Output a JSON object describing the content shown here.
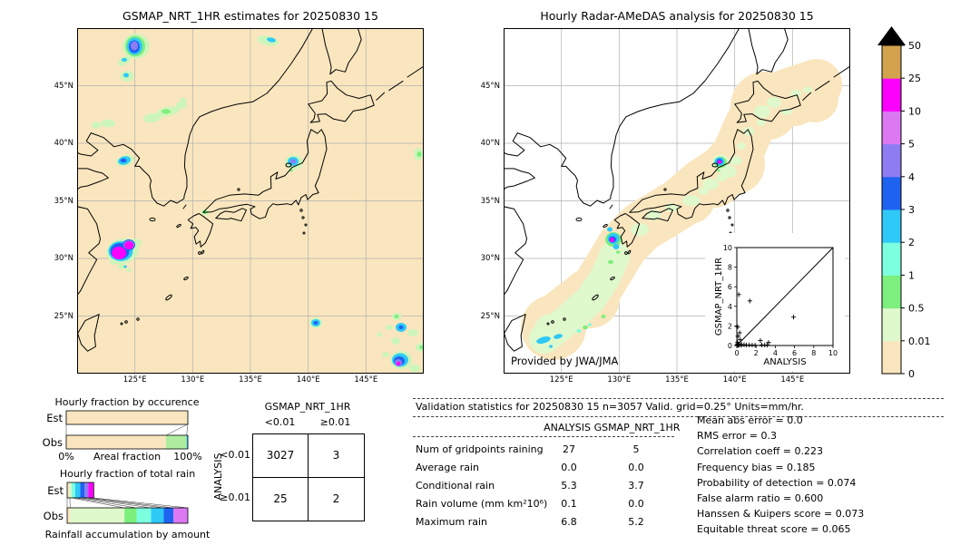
{
  "chart_data": {
    "left_map": {
      "type": "precip-map",
      "title": "GSMAP_NRT_1HR estimates for 20250830 15",
      "extent_lon": [
        120,
        150
      ],
      "extent_lat": [
        20,
        50
      ],
      "lon_ticks": [
        "125°E",
        "130°E",
        "135°E",
        "140°E",
        "145°E"
      ],
      "lat_ticks": [
        "45°N",
        "40°N",
        "35°N",
        "30°N",
        "25°N"
      ]
    },
    "right_map": {
      "type": "precip-map",
      "title": "Hourly Radar-AMeDAS analysis for 20250830 15",
      "provider": "Provided by JWA/JMA",
      "lon_ticks": [
        "125°E",
        "130°E",
        "135°E",
        "140°E",
        "145°E"
      ],
      "lat_ticks": [
        "45°N",
        "40°N",
        "35°N",
        "30°N",
        "25°N"
      ]
    },
    "colorbar": {
      "units": "mm/hr",
      "tick_labels_bottom_to_top": [
        "0",
        "0.01",
        "0.5",
        "1",
        "2",
        "3",
        "4",
        "5",
        "10",
        "25",
        "50"
      ],
      "colors_bottom_to_top": [
        "#FAE6BE",
        "#DFF8CC",
        "#7CEF7C",
        "#7CFFDE",
        "#2EC9F7",
        "#1E63F0",
        "#8E7CF2",
        "#DC78F2",
        "#FB00FB",
        "#D2A24C"
      ],
      "overflow_color": "#000000"
    },
    "occurrence_chart": {
      "type": "bar",
      "title": "Hourly fraction by occurence",
      "xlabel": "Areal fraction",
      "x_ticks": [
        "0%",
        "100%"
      ],
      "rows": [
        {
          "label": "Est",
          "width": 1.0,
          "segments": [
            {
              "color": "#FAE6BE",
              "frac": 0.995
            },
            {
              "color": "#AEED9E",
              "frac": 0.005
            }
          ]
        },
        {
          "label": "Obs",
          "width": 1.0,
          "segments": [
            {
              "color": "#FAE6BE",
              "frac": 0.82
            },
            {
              "color": "#AEED9E",
              "frac": 0.17
            },
            {
              "color": "#2EC9F7",
              "frac": 0.01
            }
          ]
        }
      ]
    },
    "totalrain_chart": {
      "type": "bar",
      "title": "Hourly fraction of total rain",
      "xlabel": "Rainfall accumulation by amount",
      "rows": [
        {
          "label": "Est",
          "width": 0.22,
          "segments": [
            {
              "color": "#FAE6BE",
              "frac": 0.1
            },
            {
              "color": "#DFF8CC",
              "frac": 0.06
            },
            {
              "color": "#7CFFDE",
              "frac": 0.14
            },
            {
              "color": "#2EC9F7",
              "frac": 0.19
            },
            {
              "color": "#1E63F0",
              "frac": 0.17
            },
            {
              "color": "#8E7CF2",
              "frac": 0.14
            },
            {
              "color": "#FB00FB",
              "frac": 0.2
            }
          ]
        },
        {
          "label": "Obs",
          "width": 1.0,
          "segments": [
            {
              "color": "#FAE6BE",
              "frac": 0.025
            },
            {
              "color": "#DFF8CC",
              "frac": 0.45
            },
            {
              "color": "#7CEF7C",
              "frac": 0.1
            },
            {
              "color": "#7CFFDE",
              "frac": 0.12
            },
            {
              "color": "#2EC9F7",
              "frac": 0.105
            },
            {
              "color": "#1E63F0",
              "frac": 0.08
            },
            {
              "color": "#DC78F2",
              "frac": 0.12
            }
          ]
        }
      ]
    },
    "contingency_table": {
      "type": "table",
      "title": "GSMAP_NRT_1HR",
      "col_labels": [
        "<0.01",
        "≥0.01"
      ],
      "row_axis_label": "ANALYSIS",
      "row_labels": [
        "<0.01",
        "≥0.01"
      ],
      "values": [
        [
          "3027",
          "3"
        ],
        [
          "25",
          "2"
        ]
      ]
    },
    "validation_stats": {
      "header": "Validation statistics for 20250830 15  n=3057 Valid. grid=0.25° Units=mm/hr.",
      "columns": [
        "ANALYSIS",
        "GSMAP_NRT_1HR"
      ],
      "rows": [
        {
          "label": "Num of gridpoints raining",
          "analysis": "27",
          "gsmap": "5"
        },
        {
          "label": "Average rain",
          "analysis": "0.0",
          "gsmap": "0.0"
        },
        {
          "label": "Conditional rain",
          "analysis": "5.3",
          "gsmap": "3.7"
        },
        {
          "label": "Rain volume (mm km²10⁶)",
          "analysis": "0.1",
          "gsmap": "0.0"
        },
        {
          "label": "Maximum rain",
          "analysis": "6.8",
          "gsmap": "5.2"
        }
      ],
      "metrics": [
        {
          "label": "Mean abs error",
          "value": "0.0"
        },
        {
          "label": "RMS error",
          "value": "0.3"
        },
        {
          "label": "Correlation coeff",
          "value": "0.223"
        },
        {
          "label": "Frequency bias",
          "value": "0.185"
        },
        {
          "label": "Probability of detection",
          "value": "0.074"
        },
        {
          "label": "False alarm ratio",
          "value": "0.600"
        },
        {
          "label": "Hanssen & Kuipers score",
          "value": "0.073"
        },
        {
          "label": "Equitable threat score",
          "value": "0.065"
        }
      ]
    },
    "inset_scatter": {
      "type": "scatter",
      "xlabel": "ANALYSIS",
      "ylabel": "GSMAP_NRT_1HR",
      "xlim": [
        0,
        10
      ],
      "ylim": [
        0,
        10
      ],
      "ticks": [
        0,
        2,
        4,
        6,
        8,
        10
      ],
      "identity_line": true,
      "points": [
        [
          0.2,
          5.2
        ],
        [
          1.35,
          4.55
        ],
        [
          5.9,
          2.9
        ],
        [
          0.1,
          1.9
        ],
        [
          0.3,
          1.3
        ],
        [
          0.12,
          0.95
        ],
        [
          0.35,
          0.6
        ],
        [
          2.45,
          0.5
        ],
        [
          3.3,
          0.3
        ],
        [
          0.08,
          0.3
        ],
        [
          0.15,
          0.15
        ],
        [
          0.05,
          0.1
        ],
        [
          0.25,
          0.07
        ],
        [
          0.5,
          0.1
        ],
        [
          0.75,
          0.08
        ],
        [
          1.0,
          0.05
        ],
        [
          1.3,
          0.06
        ],
        [
          1.6,
          0.05
        ],
        [
          1.9,
          0.04
        ],
        [
          2.6,
          0.06
        ],
        [
          2.9,
          0.05
        ],
        [
          3.15,
          0.04
        ],
        [
          0.02,
          0.02
        ],
        [
          0.06,
          0.04
        ],
        [
          0.1,
          0.06
        ],
        [
          0.45,
          0.04
        ],
        [
          0.2,
          0.03
        ]
      ]
    }
  }
}
